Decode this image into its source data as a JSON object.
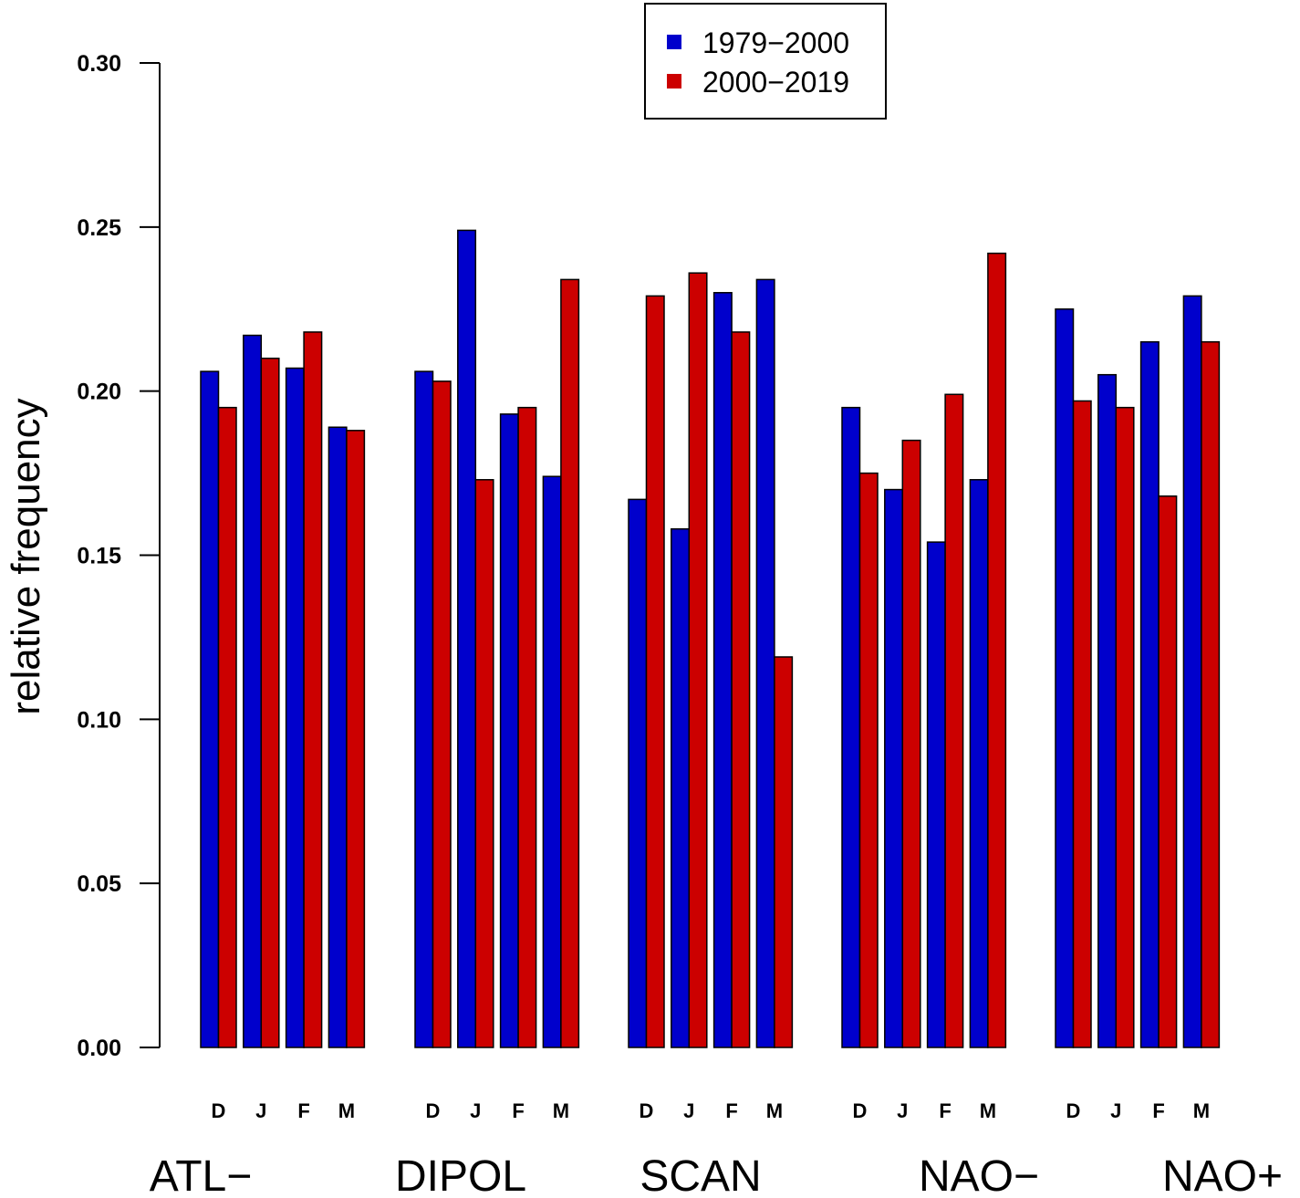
{
  "chart_data": {
    "type": "bar",
    "title": "",
    "xlabel": "",
    "ylabel": "relative frequency",
    "ylim": [
      0,
      0.3
    ],
    "yticks": [
      "0.00",
      "0.05",
      "0.10",
      "0.15",
      "0.20",
      "0.25",
      "0.30"
    ],
    "ytick_values": [
      0,
      0.05,
      0.1,
      0.15,
      0.2,
      0.25,
      0.3
    ],
    "grid": false,
    "legend_position": "top-center",
    "groups": [
      "ATL−",
      "DIPOL",
      "SCAN",
      "NAO−",
      "NAO+"
    ],
    "months": [
      "D",
      "J",
      "F",
      "M"
    ],
    "series": [
      {
        "name": "1979−2000",
        "color": "#0000cc",
        "values": [
          [
            0.206,
            0.217,
            0.207,
            0.189
          ],
          [
            0.206,
            0.249,
            0.193,
            0.174
          ],
          [
            0.167,
            0.158,
            0.23,
            0.234
          ],
          [
            0.195,
            0.17,
            0.154,
            0.173
          ],
          [
            0.225,
            0.205,
            0.215,
            0.229
          ]
        ]
      },
      {
        "name": "2000−2019",
        "color": "#cc0000",
        "values": [
          [
            0.195,
            0.21,
            0.218,
            0.188
          ],
          [
            0.203,
            0.173,
            0.195,
            0.234
          ],
          [
            0.229,
            0.236,
            0.218,
            0.119
          ],
          [
            0.175,
            0.185,
            0.199,
            0.242
          ],
          [
            0.197,
            0.195,
            0.168,
            0.215
          ]
        ]
      }
    ]
  }
}
